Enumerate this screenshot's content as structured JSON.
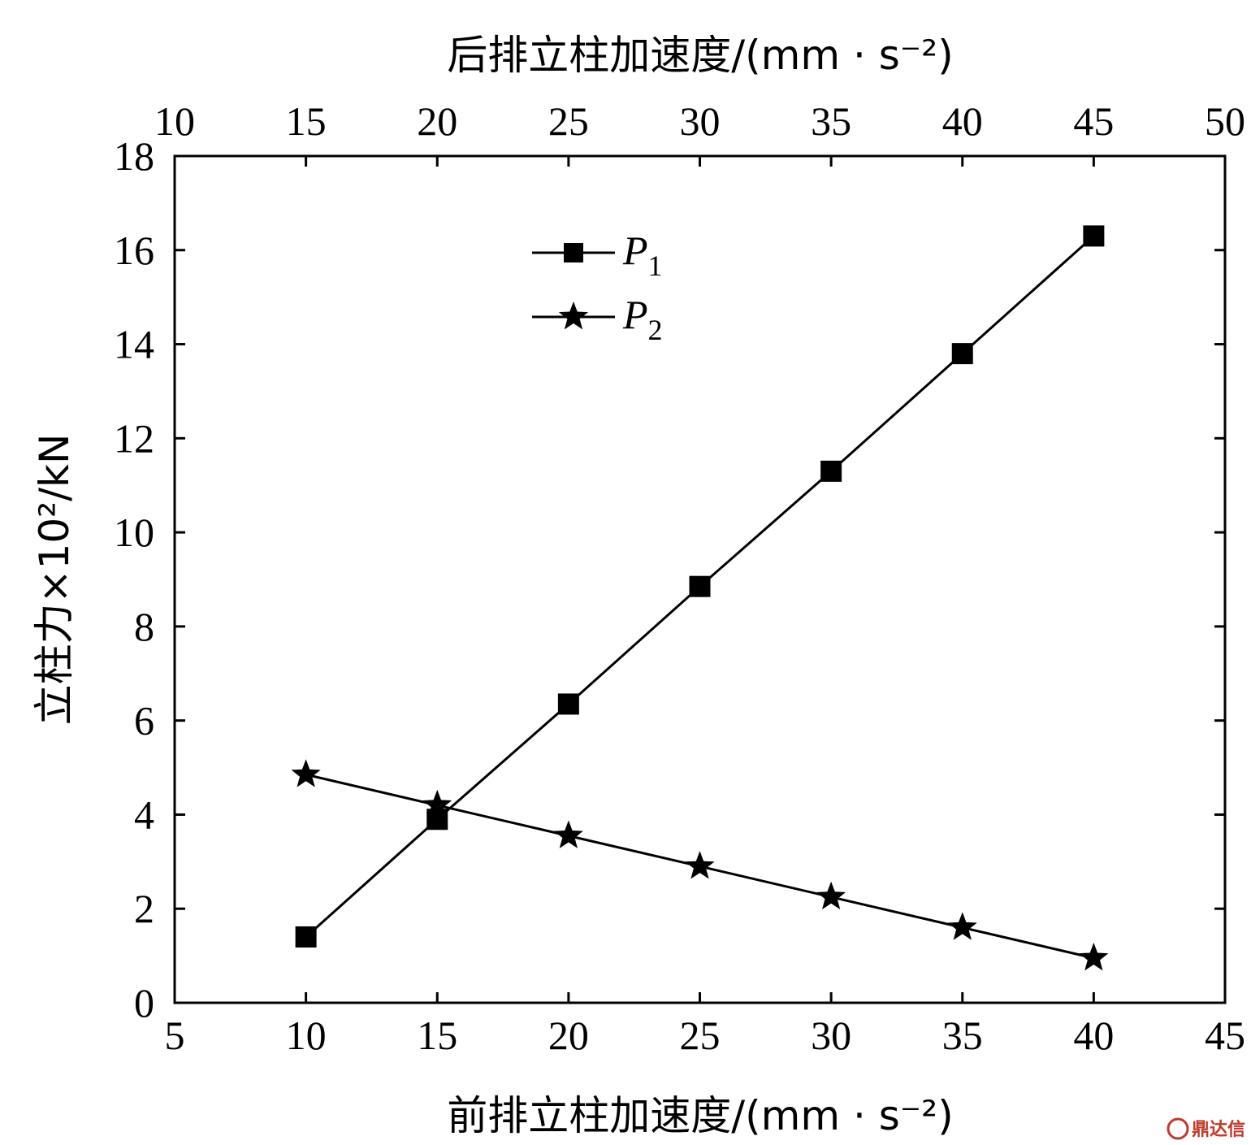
{
  "chart_data": {
    "type": "line",
    "x": [
      10,
      15,
      20,
      25,
      30,
      35,
      40
    ],
    "xlabel": "前排立柱加速度/(mm · s⁻²)",
    "x2label": "后排立柱加速度/(mm · s⁻²)",
    "ylabel": "立柱力×10²/kN",
    "xlim": [
      5,
      45
    ],
    "x2lim": [
      10,
      50
    ],
    "ylim": [
      0,
      18
    ],
    "xticks": [
      "5",
      "10",
      "15",
      "20",
      "25",
      "30",
      "35",
      "40",
      "45"
    ],
    "x2ticks": [
      "10",
      "15",
      "20",
      "25",
      "30",
      "35",
      "40",
      "45",
      "50"
    ],
    "yticks": [
      "0",
      "2",
      "4",
      "6",
      "8",
      "10",
      "12",
      "14",
      "16",
      "18"
    ],
    "series": [
      {
        "name": "P",
        "subscript": "1",
        "marker": "square",
        "values": [
          1.4,
          3.9,
          6.35,
          8.85,
          11.3,
          13.8,
          16.3
        ]
      },
      {
        "name": "P",
        "subscript": "2",
        "marker": "star",
        "values": [
          4.85,
          4.2,
          3.55,
          2.9,
          2.25,
          1.6,
          0.95
        ]
      }
    ],
    "legend_position": "top-center",
    "grid": false,
    "color": "#000000"
  },
  "watermark": {
    "text": "鼎达信",
    "color": "#c0392b"
  }
}
